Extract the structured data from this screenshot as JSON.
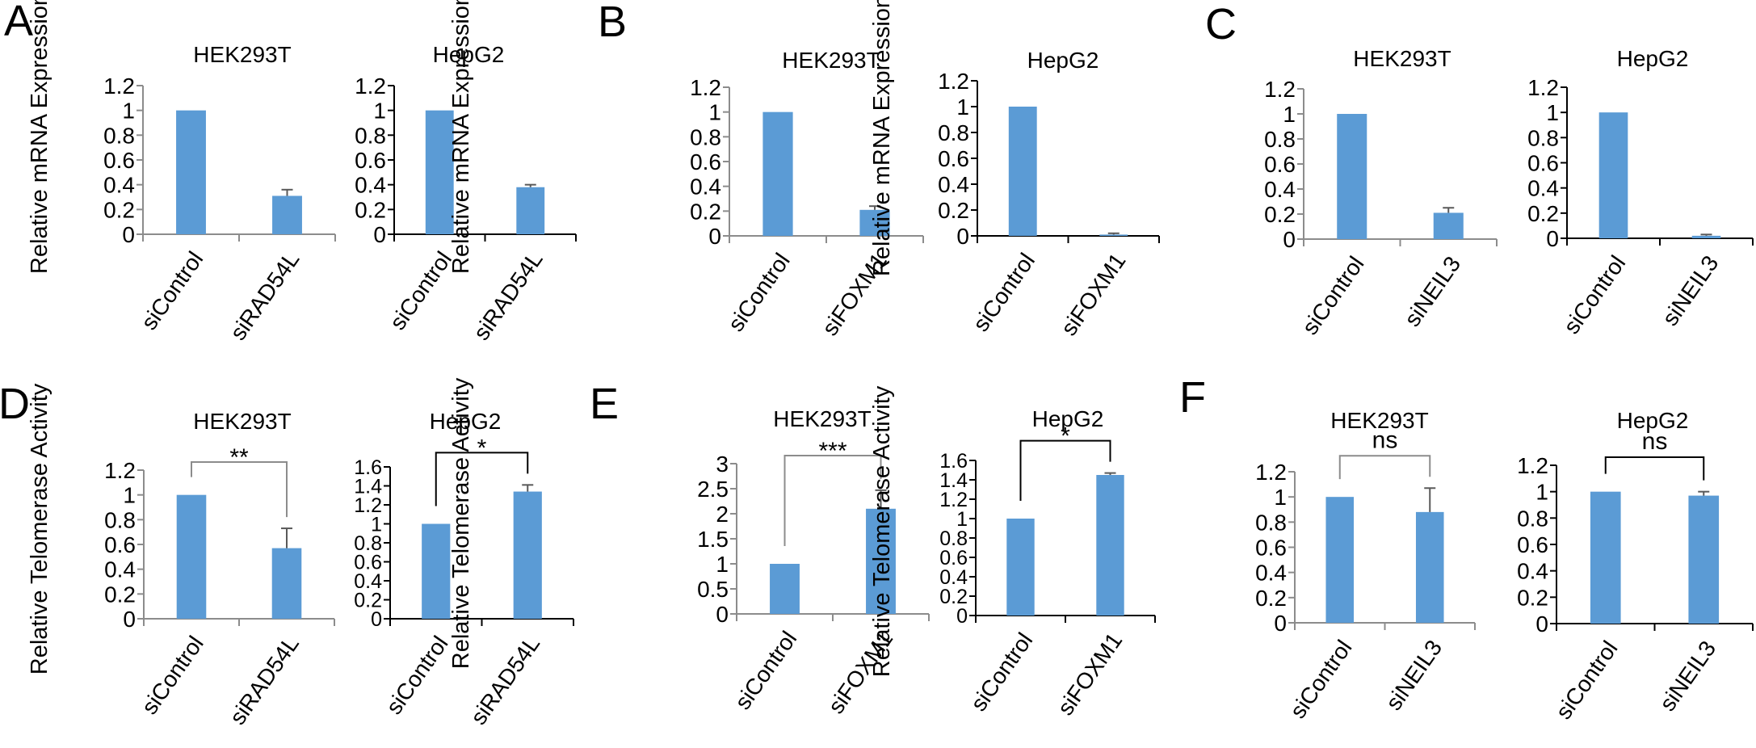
{
  "figure": {
    "bar_color": "#5B9BD5",
    "axis_color_gray": "#8C8C8C",
    "axis_color_black": "#000000"
  },
  "chart_data": [
    {
      "panel": "A",
      "type": "bar",
      "title": "HEK293T",
      "ylabel": "Relative mRNA Expression",
      "categories": [
        "siControl",
        "siRAD54L"
      ],
      "values": [
        1.0,
        0.31
      ],
      "error_upper": [
        0,
        0.05
      ],
      "ylim": [
        0,
        1.2
      ],
      "yticks": [
        "0",
        "0.2",
        "0.4",
        "0.6",
        "0.8",
        "1",
        "1.2"
      ],
      "ytick_values": [
        0,
        0.2,
        0.4,
        0.6,
        0.8,
        1.0,
        1.2
      ],
      "significance": null,
      "axis_style": "gray"
    },
    {
      "panel": "A",
      "type": "bar",
      "title": "HepG2",
      "ylabel": "",
      "categories": [
        "siControl",
        "siRAD54L"
      ],
      "values": [
        1.0,
        0.38
      ],
      "error_upper": [
        0,
        0.02
      ],
      "ylim": [
        0,
        1.2
      ],
      "yticks": [
        "0",
        "0.2",
        "0.4",
        "0.6",
        "0.8",
        "1",
        "1.2"
      ],
      "ytick_values": [
        0,
        0.2,
        0.4,
        0.6,
        0.8,
        1.0,
        1.2
      ],
      "significance": null,
      "axis_style": "black"
    },
    {
      "panel": "B",
      "type": "bar",
      "title": "HEK293T",
      "ylabel": "Relative mRNA Expression",
      "categories": [
        "siControl",
        "siFOXM1"
      ],
      "values": [
        1.0,
        0.21
      ],
      "error_upper": [
        0,
        0.03
      ],
      "ylim": [
        0,
        1.2
      ],
      "yticks": [
        "0",
        "0.2",
        "0.4",
        "0.6",
        "0.8",
        "1",
        "1.2"
      ],
      "ytick_values": [
        0,
        0.2,
        0.4,
        0.6,
        0.8,
        1.0,
        1.2
      ],
      "significance": null,
      "axis_style": "gray"
    },
    {
      "panel": "B",
      "type": "bar",
      "title": "HepG2",
      "ylabel": "",
      "categories": [
        "siControl",
        "siFOXM1"
      ],
      "values": [
        1.0,
        0.01
      ],
      "error_upper": [
        0,
        0.01
      ],
      "ylim": [
        0,
        1.2
      ],
      "yticks": [
        "0",
        "0.2",
        "0.4",
        "0.6",
        "0.8",
        "1",
        "1.2"
      ],
      "ytick_values": [
        0,
        0.2,
        0.4,
        0.6,
        0.8,
        1.0,
        1.2
      ],
      "significance": null,
      "axis_style": "black"
    },
    {
      "panel": "C",
      "type": "bar",
      "title": "HEK293T",
      "ylabel": "Relative mRNA Expression",
      "categories": [
        "siControl",
        "siNEIL3"
      ],
      "values": [
        1.0,
        0.21
      ],
      "error_upper": [
        0,
        0.04
      ],
      "ylim": [
        0,
        1.2
      ],
      "yticks": [
        "0",
        "0.2",
        "0.4",
        "0.6",
        "0.8",
        "1",
        "1.2"
      ],
      "ytick_values": [
        0,
        0.2,
        0.4,
        0.6,
        0.8,
        1.0,
        1.2
      ],
      "significance": null,
      "axis_style": "gray"
    },
    {
      "panel": "C",
      "type": "bar",
      "title": "HepG2",
      "ylabel": "",
      "categories": [
        "siControl",
        "siNEIL3"
      ],
      "values": [
        1.0,
        0.02
      ],
      "error_upper": [
        0,
        0.01
      ],
      "ylim": [
        0,
        1.2
      ],
      "yticks": [
        "0",
        "0.2",
        "0.4",
        "0.6",
        "0.8",
        "1",
        "1.2"
      ],
      "ytick_values": [
        0,
        0.2,
        0.4,
        0.6,
        0.8,
        1.0,
        1.2
      ],
      "significance": null,
      "axis_style": "black"
    },
    {
      "panel": "D",
      "type": "bar",
      "title": "HEK293T",
      "ylabel": "Relative Telomerase Activity",
      "categories": [
        "siControl",
        "siRAD54L"
      ],
      "values": [
        1.0,
        0.57
      ],
      "error_upper": [
        0,
        0.16
      ],
      "ylim": [
        0,
        1.2
      ],
      "yticks": [
        "0",
        "0.2",
        "0.4",
        "0.6",
        "0.8",
        "1",
        "1.2"
      ],
      "ytick_values": [
        0,
        0.2,
        0.4,
        0.6,
        0.8,
        1.0,
        1.2
      ],
      "significance": "**",
      "axis_style": "gray"
    },
    {
      "panel": "D",
      "type": "bar",
      "title": "HepG2",
      "ylabel": "",
      "categories": [
        "siControl",
        "siRAD54L"
      ],
      "values": [
        1.0,
        1.34
      ],
      "error_upper": [
        0,
        0.07
      ],
      "ylim": [
        0,
        1.6
      ],
      "yticks": [
        "0",
        "0.2",
        "0.4",
        "0.6",
        "0.8",
        "1",
        "1.2",
        "1.4",
        "1.6"
      ],
      "ytick_values": [
        0,
        0.2,
        0.4,
        0.6,
        0.8,
        1.0,
        1.2,
        1.4,
        1.6
      ],
      "significance": "*",
      "axis_style": "black"
    },
    {
      "panel": "E",
      "type": "bar",
      "title": "HEK293T",
      "ylabel": "Relative Telomerase Activity",
      "categories": [
        "siControl",
        "siFOXM1"
      ],
      "values": [
        1.0,
        2.1
      ],
      "error_upper": [
        0,
        0.37
      ],
      "ylim": [
        0,
        3
      ],
      "yticks": [
        "0",
        "0.5",
        "1",
        "1.5",
        "2",
        "2.5",
        "3"
      ],
      "ytick_values": [
        0,
        0.5,
        1.0,
        1.5,
        2.0,
        2.5,
        3.0
      ],
      "significance": "***",
      "axis_style": "gray"
    },
    {
      "panel": "E",
      "type": "bar",
      "title": "HepG2",
      "ylabel": "",
      "categories": [
        "siControl",
        "siFOXM1"
      ],
      "values": [
        1.0,
        1.45
      ],
      "error_upper": [
        0,
        0.02
      ],
      "ylim": [
        0,
        1.6
      ],
      "yticks": [
        "0",
        "0.2",
        "0.4",
        "0.6",
        "0.8",
        "1",
        "1.2",
        "1.4",
        "1.6"
      ],
      "ytick_values": [
        0,
        0.2,
        0.4,
        0.6,
        0.8,
        1.0,
        1.2,
        1.4,
        1.6
      ],
      "significance": "*",
      "axis_style": "black"
    },
    {
      "panel": "F",
      "type": "bar",
      "title": "HEK293T",
      "ylabel": "Relative Telomerase Activity",
      "categories": [
        "siControl",
        "siNEIL3"
      ],
      "values": [
        1.0,
        0.88
      ],
      "error_upper": [
        0,
        0.19
      ],
      "ylim": [
        0,
        1.2
      ],
      "yticks": [
        "0",
        "0.2",
        "0.4",
        "0.6",
        "0.8",
        "1",
        "1.2"
      ],
      "ytick_values": [
        0,
        0.2,
        0.4,
        0.6,
        0.8,
        1.0,
        1.2
      ],
      "significance": "ns",
      "axis_style": "gray"
    },
    {
      "panel": "F",
      "type": "bar",
      "title": "HepG2",
      "ylabel": "",
      "categories": [
        "siControl",
        "siNEIL3"
      ],
      "values": [
        1.0,
        0.97
      ],
      "error_upper": [
        0,
        0.03
      ],
      "ylim": [
        0,
        1.2
      ],
      "yticks": [
        "0",
        "0.2",
        "0.4",
        "0.6",
        "0.8",
        "1",
        "1.2"
      ],
      "ytick_values": [
        0,
        0.2,
        0.4,
        0.6,
        0.8,
        1.0,
        1.2
      ],
      "significance": "ns",
      "axis_style": "black"
    }
  ]
}
